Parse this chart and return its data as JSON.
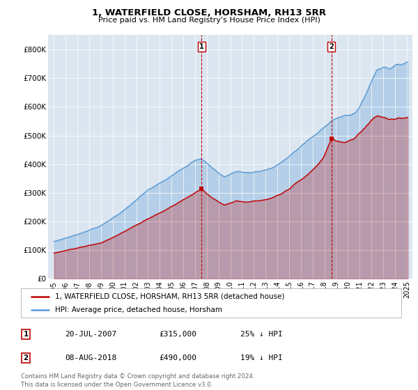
{
  "title": "1, WATERFIELD CLOSE, HORSHAM, RH13 5RR",
  "subtitle": "Price paid vs. HM Land Registry's House Price Index (HPI)",
  "legend_line1": "1, WATERFIELD CLOSE, HORSHAM, RH13 5RR (detached house)",
  "legend_line2": "HPI: Average price, detached house, Horsham",
  "footnote": "Contains HM Land Registry data © Crown copyright and database right 2024.\nThis data is licensed under the Open Government Licence v3.0.",
  "sale1_date": "20-JUL-2007",
  "sale1_price": "£315,000",
  "sale1_note": "25% ↓ HPI",
  "sale2_date": "08-AUG-2018",
  "sale2_price": "£490,000",
  "sale2_note": "19% ↓ HPI",
  "sale1_x": 2007.55,
  "sale1_y": 315000,
  "sale2_x": 2018.6,
  "sale2_y": 490000,
  "hpi_color": "#5b9bd5",
  "price_color": "#c00000",
  "background_chart": "#dce6f1",
  "background_fig": "#ffffff",
  "ylim": [
    0,
    850000
  ],
  "xlim_start": 1994.5,
  "xlim_end": 2025.5,
  "yticks": [
    0,
    100000,
    200000,
    300000,
    400000,
    500000,
    600000,
    700000,
    800000
  ],
  "ytick_labels": [
    "£0",
    "£100K",
    "£200K",
    "£300K",
    "£400K",
    "£500K",
    "£600K",
    "£700K",
    "£800K"
  ],
  "xticks": [
    1995,
    1996,
    1997,
    1998,
    1999,
    2000,
    2001,
    2002,
    2003,
    2004,
    2005,
    2006,
    2007,
    2008,
    2009,
    2010,
    2011,
    2012,
    2013,
    2014,
    2015,
    2016,
    2017,
    2018,
    2019,
    2020,
    2021,
    2022,
    2023,
    2024,
    2025
  ]
}
